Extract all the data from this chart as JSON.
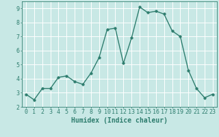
{
  "x": [
    0,
    1,
    2,
    3,
    4,
    5,
    6,
    7,
    8,
    9,
    10,
    11,
    12,
    13,
    14,
    15,
    16,
    17,
    18,
    19,
    20,
    21,
    22,
    23
  ],
  "y": [
    2.9,
    2.5,
    3.3,
    3.3,
    4.1,
    4.2,
    3.8,
    3.6,
    4.4,
    5.5,
    7.5,
    7.6,
    5.1,
    6.9,
    9.1,
    8.7,
    8.8,
    8.6,
    7.4,
    7.0,
    4.6,
    3.3,
    2.65,
    2.9
  ],
  "line_color": "#2e7d6e",
  "marker": "o",
  "marker_size": 2.5,
  "bg_color": "#c8e8e5",
  "grid_color": "#ffffff",
  "xlabel": "Humidex (Indice chaleur)",
  "xlim": [
    -0.5,
    23.5
  ],
  "ylim": [
    2,
    9.5
  ],
  "xticks": [
    0,
    1,
    2,
    3,
    4,
    5,
    6,
    7,
    8,
    9,
    10,
    11,
    12,
    13,
    14,
    15,
    16,
    17,
    18,
    19,
    20,
    21,
    22,
    23
  ],
  "yticks": [
    2,
    3,
    4,
    5,
    6,
    7,
    8,
    9
  ],
  "tick_color": "#2e7d6e",
  "label_fontsize": 6,
  "axis_label_fontsize": 7
}
